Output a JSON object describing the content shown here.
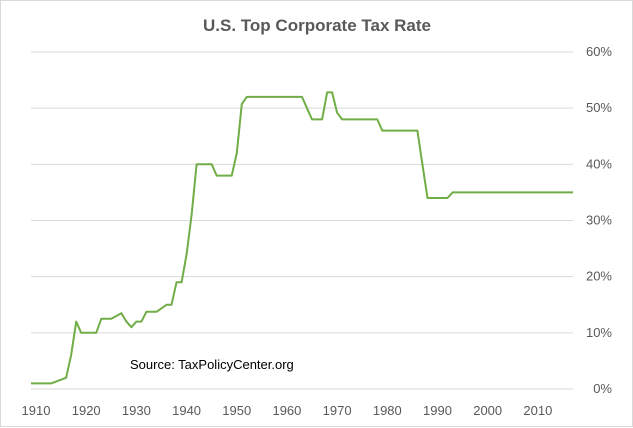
{
  "chart_data": {
    "type": "line",
    "title": "U.S. Top Corporate Tax Rate",
    "xlabel": "",
    "ylabel": "",
    "annotation": "Source:  TaxPolicyCenter.org",
    "xlim": [
      1909,
      2017
    ],
    "ylim": [
      0,
      60
    ],
    "x_ticks": [
      1910,
      1920,
      1930,
      1940,
      1950,
      1960,
      1970,
      1980,
      1990,
      2000,
      2010
    ],
    "y_ticks": [
      0,
      10,
      20,
      30,
      40,
      50,
      60
    ],
    "y_tick_labels": [
      "0%",
      "10%",
      "20%",
      "30%",
      "40%",
      "50%",
      "60%"
    ],
    "y_axis_side": "right",
    "grid": "horizontal",
    "legend": "none",
    "line_color": "#70ad47",
    "series": [
      {
        "x": [
          1909,
          1913,
          1916,
          1917,
          1918,
          1919,
          1922,
          1923,
          1925,
          1926,
          1927,
          1928,
          1929,
          1930,
          1931,
          1932,
          1934,
          1936,
          1937,
          1938,
          1939,
          1940,
          1941,
          1942,
          1945,
          1946,
          1949,
          1950,
          1951,
          1952,
          1963,
          1964,
          1965,
          1967,
          1968,
          1969,
          1970,
          1971,
          1978,
          1979,
          1986,
          1987,
          1988,
          1992,
          1993,
          2017
        ],
        "y": [
          1,
          1,
          2,
          6,
          12,
          10,
          10,
          12.5,
          12.5,
          13,
          13.5,
          12,
          11,
          12,
          12,
          13.75,
          13.75,
          15,
          15,
          19,
          19,
          24,
          31,
          40,
          40,
          38,
          38,
          42,
          50.75,
          52,
          52,
          50,
          48,
          48,
          52.8,
          52.8,
          49.2,
          48,
          48,
          46,
          46,
          40,
          34,
          34,
          35,
          35
        ]
      }
    ]
  }
}
